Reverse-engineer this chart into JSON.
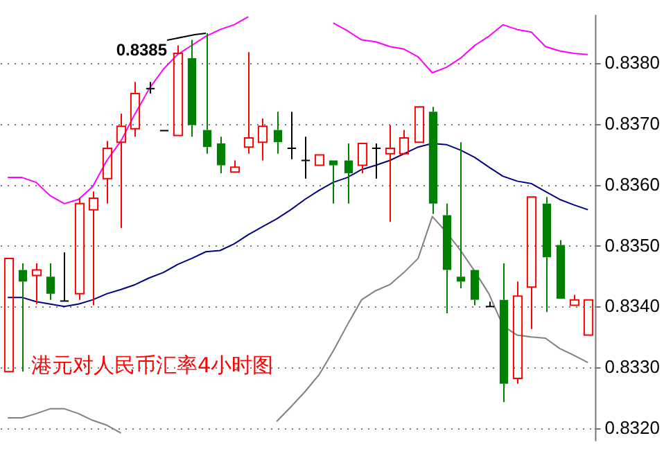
{
  "chart_data": {
    "type": "candlestick",
    "title": "港元对人民币汇率4小时图",
    "categories": [
      null,
      null,
      null,
      null,
      null,
      null,
      null,
      null,
      null,
      null,
      null,
      null,
      null,
      null,
      null,
      null,
      null,
      null,
      null,
      null,
      null,
      null,
      null,
      null,
      null,
      null,
      null,
      null,
      null,
      null,
      null,
      null,
      null,
      null,
      null,
      null,
      null,
      null,
      null,
      null,
      null,
      null
    ],
    "ohlc": [
      [
        0.83294,
        0.8348,
        0.83294,
        0.8348
      ],
      [
        0.83461,
        0.83472,
        0.83294,
        0.83442
      ],
      [
        0.83452,
        0.83472,
        0.83405,
        0.83461
      ],
      [
        0.8345,
        0.83472,
        0.83412,
        0.83422
      ],
      [
        0.8341,
        0.8349,
        0.8341,
        0.8341
      ],
      [
        0.83422,
        0.83579,
        0.83412,
        0.8357
      ],
      [
        0.8356,
        0.8359,
        0.83403,
        0.83579
      ],
      [
        0.83611,
        0.83673,
        0.8357,
        0.83661
      ],
      [
        0.83671,
        0.83718,
        0.8353,
        0.83697
      ],
      [
        0.83693,
        0.8377,
        0.8368,
        0.83751
      ],
      [
        0.83759,
        0.8377,
        0.83751,
        0.83759
      ],
      [
        0.8369,
        0.8369,
        0.8369,
        0.8369
      ],
      [
        0.83682,
        0.8383,
        0.83682,
        0.83817
      ],
      [
        0.83809,
        0.83839,
        0.8368,
        0.83699
      ],
      [
        0.83691,
        0.8385,
        0.83652,
        0.83663
      ],
      [
        0.83669,
        0.8368,
        0.8362,
        0.83633
      ],
      [
        0.83622,
        0.83641,
        0.83622,
        0.8363
      ],
      [
        0.83663,
        0.83819,
        0.83652,
        0.83678
      ],
      [
        0.83671,
        0.8371,
        0.83641,
        0.83697
      ],
      [
        0.83691,
        0.83721,
        0.83652,
        0.83671
      ],
      [
        0.83661,
        0.83721,
        0.83643,
        0.83661
      ],
      [
        0.83641,
        0.8368,
        0.83611,
        0.83641
      ],
      [
        0.83633,
        0.8365,
        0.83633,
        0.8365
      ],
      [
        0.83641,
        0.83641,
        0.8357,
        0.83633
      ],
      [
        0.83641,
        0.83669,
        0.8357,
        0.8362
      ],
      [
        0.83633,
        0.83669,
        0.8362,
        0.83669
      ],
      [
        0.83661,
        0.83669,
        0.83611,
        0.83661
      ],
      [
        0.83652,
        0.83699,
        0.8354,
        0.83661
      ],
      [
        0.83652,
        0.83691,
        0.83652,
        0.83678
      ],
      [
        0.83671,
        0.83729,
        0.83671,
        0.83729
      ],
      [
        0.83721,
        0.83729,
        0.83553,
        0.8357
      ],
      [
        0.83551,
        0.8357,
        0.8339,
        0.83461
      ],
      [
        0.8345,
        0.83671,
        0.83431,
        0.83442
      ],
      [
        0.83461,
        0.83461,
        0.83403,
        0.83412
      ],
      [
        0.83401,
        0.83409,
        0.83401,
        0.83401
      ],
      [
        0.83412,
        0.83472,
        0.83244,
        0.83274
      ],
      [
        0.83283,
        0.83442,
        0.83274,
        0.83418
      ],
      [
        0.83433,
        0.83581,
        0.83364,
        0.83581
      ],
      [
        0.8357,
        0.83581,
        0.83392,
        0.83482
      ],
      [
        0.83502,
        0.8351,
        0.83414,
        0.83414
      ],
      [
        0.83403,
        0.8342,
        0.83403,
        0.83412
      ],
      [
        0.83354,
        0.83412,
        0.83354,
        0.83412
      ]
    ],
    "colors": [
      "#ff0000",
      "#008000",
      "#ff0000",
      "#008000",
      "#000000",
      "#ff0000",
      "#ff0000",
      "#ff0000",
      "#ff0000",
      "#ff0000",
      "#000000",
      "#000000",
      "#ff0000",
      "#008000",
      "#008000",
      "#008000",
      "#ff0000",
      "#ff0000",
      "#ff0000",
      "#008000",
      "#000000",
      "#000000",
      "#ff0000",
      "#008000",
      "#008000",
      "#ff0000",
      "#000000",
      "#ff0000",
      "#ff0000",
      "#ff0000",
      "#008000",
      "#008000",
      "#008000",
      "#008000",
      "#000000",
      "#008000",
      "#ff0000",
      "#ff0000",
      "#008000",
      "#008000",
      "#ff0000",
      "#ff0000"
    ],
    "series": [
      {
        "type": "line",
        "color": "#ff00ff",
        "values": [
          0.83613,
          0.83613,
          0.83605,
          0.83583,
          0.8357,
          0.83577,
          0.83598,
          0.83641,
          0.83673,
          0.83718,
          0.83759,
          0.83791,
          0.83815,
          0.8383,
          0.83845,
          0.83856,
          0.83864,
          0.83877,
          null,
          null,
          null,
          null,
          null,
          0.83867,
          0.83854,
          0.83839,
          0.83836,
          0.83828,
          0.83824,
          0.83811,
          0.83785,
          0.83794,
          0.83809,
          0.8383,
          0.83845,
          0.83864,
          0.83856,
          0.83852,
          0.83828,
          0.83821,
          0.83817,
          0.83815
        ]
      },
      {
        "type": "line",
        "color": "#000080",
        "values": [
          0.83416,
          0.83416,
          0.83409,
          0.83405,
          0.83401,
          0.83405,
          0.83412,
          0.83422,
          0.83429,
          0.83437,
          0.83448,
          0.83457,
          0.8347,
          0.8348,
          0.83491,
          0.83493,
          0.83504,
          0.83519,
          0.83532,
          0.83545,
          0.8356,
          0.83577,
          0.83592,
          0.83605,
          0.83613,
          0.83626,
          0.83633,
          0.83641,
          0.83652,
          0.83663,
          0.83669,
          0.83667,
          0.83658,
          0.83646,
          0.8363,
          0.83615,
          0.83607,
          0.83603,
          0.8359,
          0.83577,
          0.83568,
          0.8356
        ]
      },
      {
        "type": "line",
        "color": "#808080",
        "values": [
          0.83218,
          0.83218,
          0.83225,
          0.83233,
          0.83233,
          0.83225,
          0.83214,
          0.83206,
          0.83193,
          null,
          null,
          null,
          null,
          null,
          null,
          null,
          null,
          null,
          null,
          0.83212,
          0.83236,
          0.83261,
          0.83289,
          0.83328,
          0.83371,
          0.83412,
          0.83427,
          0.83437,
          0.83457,
          0.8348,
          0.83549,
          0.83523,
          0.83493,
          0.83459,
          0.83422,
          0.83369,
          0.83354,
          0.83351,
          0.83349,
          0.83332,
          0.83321,
          0.83309
        ]
      }
    ],
    "annotations": [
      "0.8385"
    ],
    "ylim": [
      0.8318,
      0.8388
    ],
    "yticks": [
      {
        "value": 0.832,
        "label": "0.8320"
      },
      {
        "value": 0.833,
        "label": "0.8330"
      },
      {
        "value": 0.834,
        "label": "0.8340"
      },
      {
        "value": 0.835,
        "label": "0.8350"
      },
      {
        "value": 0.836,
        "label": "0.8360"
      },
      {
        "value": 0.837,
        "label": "0.8370"
      },
      {
        "value": 0.838,
        "label": "0.8380"
      }
    ],
    "grid": "y",
    "legend": false,
    "tick_labels": "y"
  }
}
